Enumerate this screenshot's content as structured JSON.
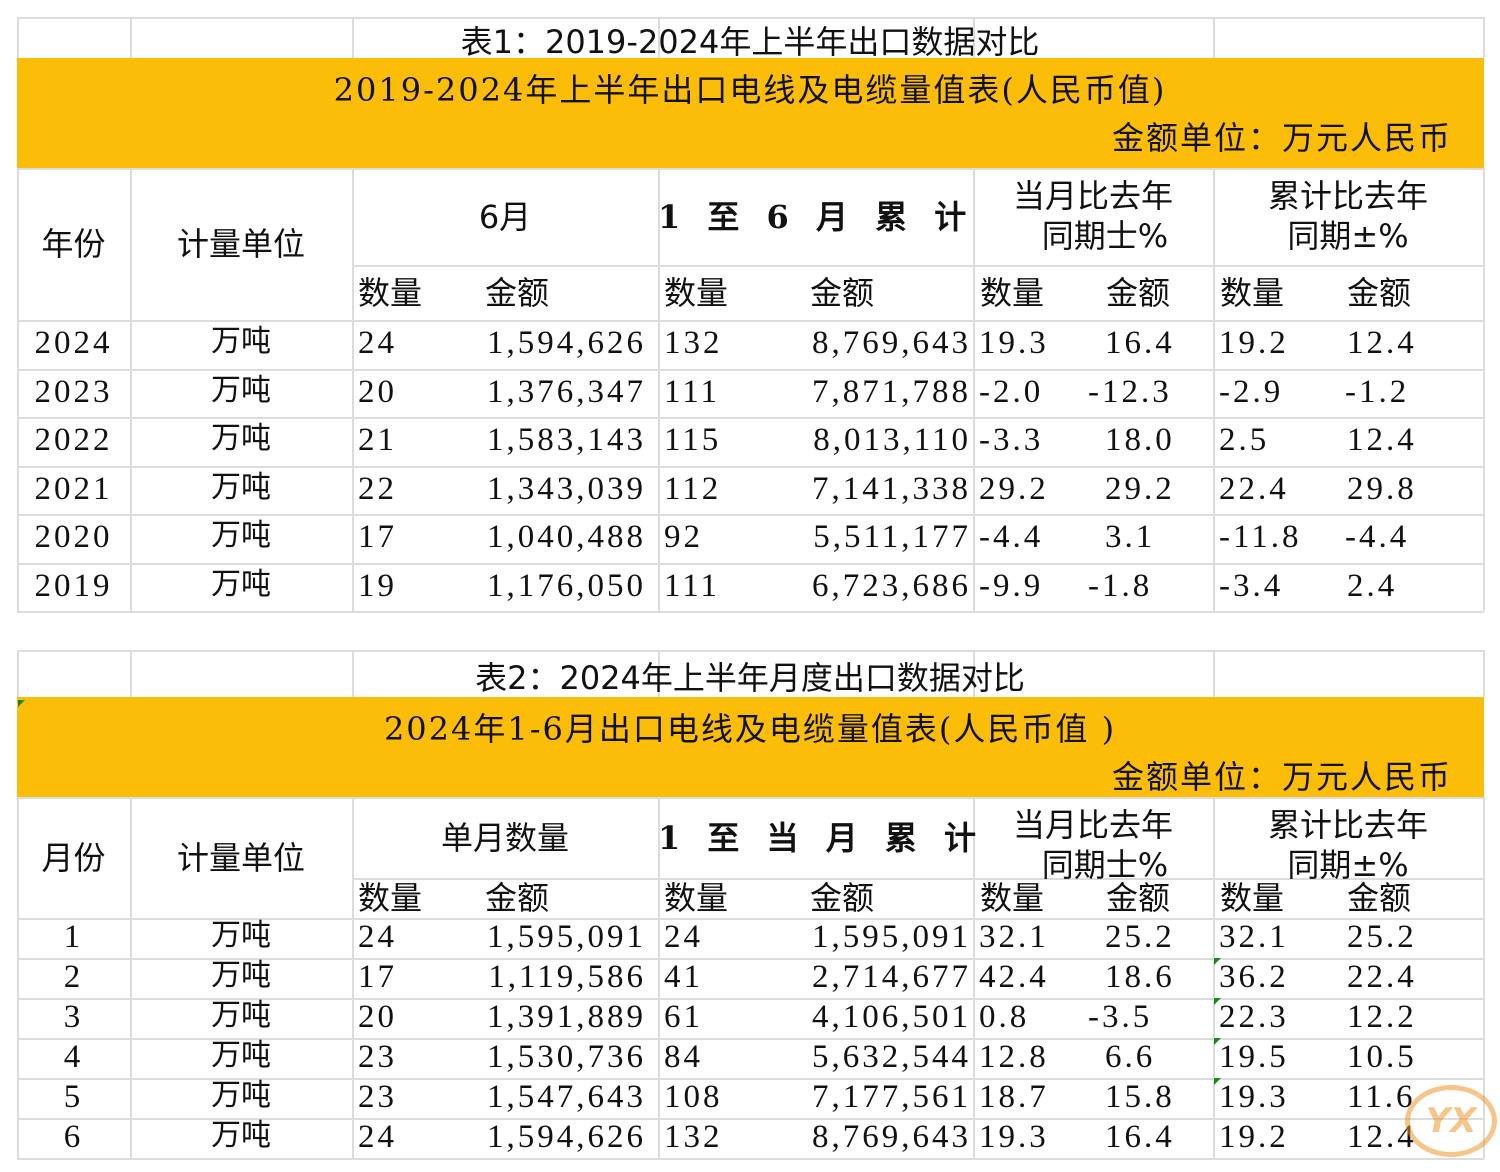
{
  "table1": {
    "caption": "表1：2019-2024年上半年出口数据对比",
    "title": "2019-2024年上半年出口电线及电缆量值表(人民币值)",
    "unit_note": "金额单位：万元人民币",
    "headers": {
      "first": "年份",
      "unit": "计量单位",
      "group1": "6月",
      "group2": "1 至 6 月 累 计",
      "group3_l1": "当月比去年",
      "group3_l2": "同期士%",
      "group4_l1": "累计比去年",
      "group4_l2": "同期±%",
      "qty": "数量",
      "amt": "金额"
    },
    "rows": [
      [
        "2024",
        "万吨",
        "24",
        "1,594,626",
        "132",
        "8,769,643",
        "19.3",
        "16.4",
        "19.2",
        "12.4"
      ],
      [
        "2023",
        "万吨",
        "20",
        "1,376,347",
        "111",
        "7,871,788",
        "-2.0",
        "-12.3",
        "-2.9",
        "-1.2"
      ],
      [
        "2022",
        "万吨",
        "21",
        "1,583,143",
        "115",
        "8,013,110",
        "-3.3",
        "18.0",
        "2.5",
        "12.4"
      ],
      [
        "2021",
        "万吨",
        "22",
        "1,343,039",
        "112",
        "7,141,338",
        "29.2",
        "29.2",
        "22.4",
        "29.8"
      ],
      [
        "2020",
        "万吨",
        "17",
        "1,040,488",
        "92",
        "5,511,177",
        "-4.4",
        "3.1",
        "-11.8",
        "-4.4"
      ],
      [
        "2019",
        "万吨",
        "19",
        "1,176,050",
        "111",
        "6,723,686",
        "-9.9",
        "-1.8",
        "-3.4",
        "2.4"
      ]
    ]
  },
  "table2": {
    "caption": "表2：2024年上半年月度出口数据对比",
    "title": "2024年1-6月出口电线及电缆量值表(人民币值 )",
    "unit_note": "金额单位：万元人民币",
    "headers": {
      "first": "月份",
      "unit": "计量单位",
      "group1": "单月数量",
      "group2": "1 至 当 月 累 计",
      "group3_l1": "当月比去年",
      "group3_l2": "同期士%",
      "group4_l1": "累计比去年",
      "group4_l2": "同期±%",
      "qty": "数量",
      "amt": "金额"
    },
    "rows": [
      [
        "1",
        "万吨",
        "24",
        "1,595,091",
        "24",
        "1,595,091",
        "32.1",
        "25.2",
        "32.1",
        "25.2"
      ],
      [
        "2",
        "万吨",
        "17",
        "1,119,586",
        "41",
        "2,714,677",
        "42.4",
        "18.6",
        "36.2",
        "22.4"
      ],
      [
        "3",
        "万吨",
        "20",
        "1,391,889",
        "61",
        "4,106,501",
        "0.8",
        "-3.5",
        "22.3",
        "12.2"
      ],
      [
        "4",
        "万吨",
        "23",
        "1,530,736",
        "84",
        "5,632,544",
        "12.8",
        "6.6",
        "19.5",
        "10.5"
      ],
      [
        "5",
        "万吨",
        "23",
        "1,547,643",
        "108",
        "7,177,561",
        "18.7",
        "15.8",
        "19.3",
        "11.6"
      ],
      [
        "6",
        "万吨",
        "24",
        "1,594,626",
        "132",
        "8,769,643",
        "19.3",
        "16.4",
        "19.2",
        "12.4"
      ]
    ]
  },
  "watermark": "YX",
  "colors": {
    "band": "#fbbd08",
    "grid": "#dcdcdc",
    "comment_marker": "#1a8a1a"
  }
}
